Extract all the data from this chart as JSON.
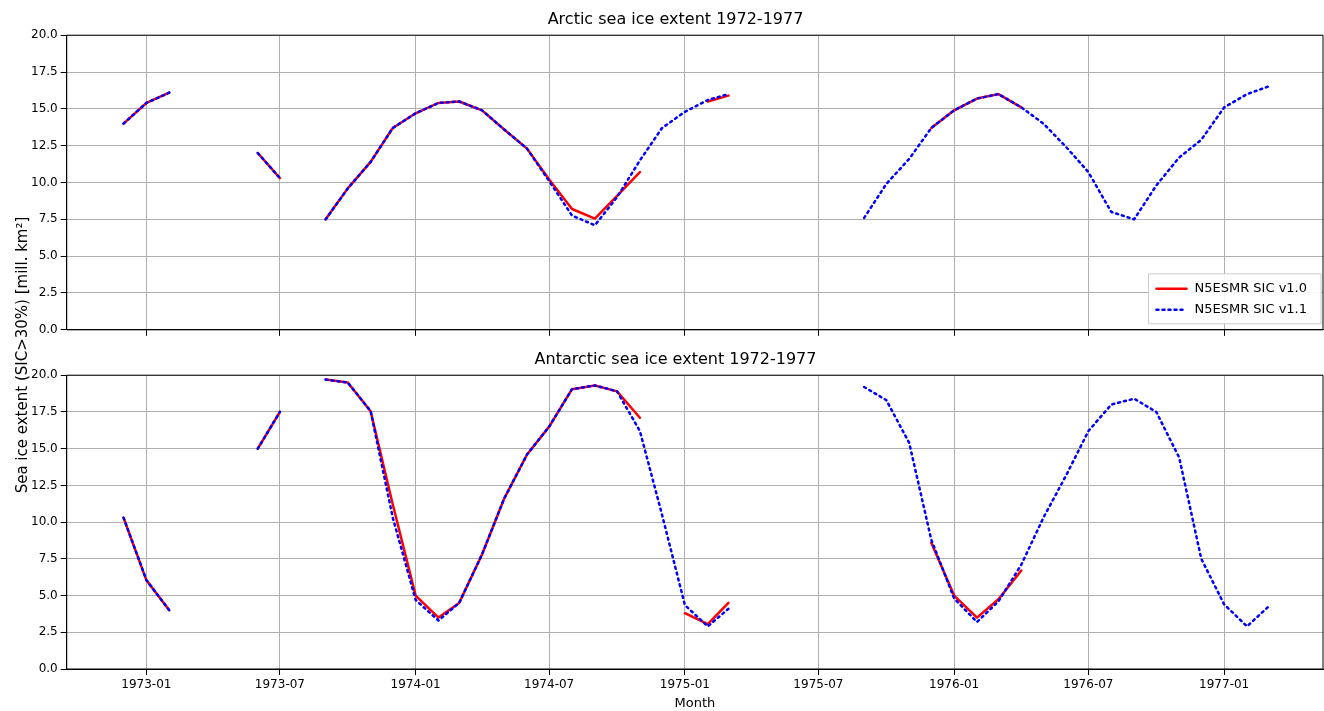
{
  "chart_data": [
    {
      "type": "line",
      "title": "Arctic sea ice extent 1972-1977",
      "x": [
        "1972-12",
        "1973-01",
        "1973-02",
        "1973-03",
        "1973-04",
        "1973-05",
        "1973-06",
        "1973-07",
        "1973-08",
        "1973-09",
        "1973-10",
        "1973-11",
        "1973-12",
        "1974-01",
        "1974-02",
        "1974-03",
        "1974-04",
        "1974-05",
        "1974-06",
        "1974-07",
        "1974-08",
        "1974-09",
        "1974-10",
        "1974-11",
        "1974-12",
        "1975-01",
        "1975-02",
        "1975-03",
        "1975-04",
        "1975-05",
        "1975-06",
        "1975-07",
        "1975-08",
        "1975-09",
        "1975-10",
        "1975-11",
        "1975-12",
        "1976-01",
        "1976-02",
        "1976-03",
        "1976-04",
        "1976-05",
        "1976-06",
        "1976-07",
        "1976-08",
        "1976-09",
        "1976-10",
        "1976-11",
        "1976-12",
        "1977-01",
        "1977-02",
        "1977-03"
      ],
      "series": [
        {
          "name": "N5ESMR SIC v1.0",
          "color": "#ff0000",
          "line_style": "solid",
          "values": [
            14.0,
            15.4,
            16.1,
            null,
            null,
            null,
            12.0,
            10.3,
            null,
            7.5,
            9.6,
            11.4,
            13.7,
            14.7,
            15.4,
            15.5,
            14.9,
            13.6,
            12.3,
            10.2,
            8.2,
            7.55,
            9.1,
            10.7,
            null,
            null,
            15.5,
            15.9,
            null,
            null,
            null,
            null,
            null,
            null,
            null,
            null,
            13.7,
            14.9,
            15.7,
            16.0,
            15.1,
            null,
            null,
            null,
            null,
            null,
            null,
            null,
            null,
            null,
            null,
            null
          ]
        },
        {
          "name": "N5ESMR SIC v1.1",
          "color": "#0000ff",
          "line_style": "dotted",
          "values": [
            14.0,
            15.4,
            16.1,
            null,
            null,
            null,
            12.0,
            10.3,
            null,
            7.5,
            9.6,
            11.4,
            13.7,
            14.7,
            15.4,
            15.5,
            14.9,
            13.6,
            12.3,
            10.1,
            7.75,
            7.1,
            9.0,
            11.5,
            13.7,
            14.8,
            15.6,
            16.0,
            null,
            null,
            null,
            null,
            null,
            7.6,
            9.9,
            11.6,
            13.7,
            14.9,
            15.7,
            16.0,
            15.1,
            14.0,
            12.4,
            10.7,
            8.0,
            7.5,
            9.8,
            11.7,
            12.9,
            15.1,
            16.0,
            16.5
          ]
        }
      ],
      "xlim": [
        "1972-09-15",
        "1977-05-15"
      ],
      "xticks": [
        "1973-01",
        "1973-07",
        "1974-01",
        "1974-07",
        "1975-01",
        "1975-07",
        "1976-01",
        "1976-07",
        "1977-01"
      ],
      "ylim": [
        0,
        20
      ],
      "yticks": [
        {
          "value": 0,
          "label": "0.0"
        },
        {
          "value": 2.5,
          "label": "2.5"
        },
        {
          "value": 5,
          "label": "5.0"
        },
        {
          "value": 7.5,
          "label": "7.5"
        },
        {
          "value": 10,
          "label": "10.0"
        },
        {
          "value": 12.5,
          "label": "12.5"
        },
        {
          "value": 15,
          "label": "15.0"
        },
        {
          "value": 17.5,
          "label": "17.5"
        },
        {
          "value": 20,
          "label": "20.0"
        }
      ],
      "tick_labels": "y",
      "grid": true,
      "legend": "bottom right",
      "marker": "none"
    },
    {
      "type": "line",
      "title": "Antarctic sea ice extent 1972-1977",
      "xlabel": "Month",
      "ylabel": "Sea ice extent (SIC>30%) [mill. km²]",
      "x": [
        "1972-12",
        "1973-01",
        "1973-02",
        "1973-03",
        "1973-04",
        "1973-05",
        "1973-06",
        "1973-07",
        "1973-08",
        "1973-09",
        "1973-10",
        "1973-11",
        "1973-12",
        "1974-01",
        "1974-02",
        "1974-03",
        "1974-04",
        "1974-05",
        "1974-06",
        "1974-07",
        "1974-08",
        "1974-09",
        "1974-10",
        "1974-11",
        "1974-12",
        "1975-01",
        "1975-02",
        "1975-03",
        "1975-04",
        "1975-05",
        "1975-06",
        "1975-07",
        "1975-08",
        "1975-09",
        "1975-10",
        "1975-11",
        "1975-12",
        "1976-01",
        "1976-02",
        "1976-03",
        "1976-04",
        "1976-05",
        "1976-06",
        "1976-07",
        "1976-08",
        "1976-09",
        "1976-10",
        "1976-11",
        "1976-12",
        "1977-01",
        "1977-02",
        "1977-03"
      ],
      "series": [
        {
          "color": "#ff0000",
          "line_style": "solid",
          "values": [
            10.3,
            6.05,
            4.0,
            null,
            null,
            null,
            15.0,
            17.5,
            null,
            19.7,
            19.5,
            17.55,
            11.2,
            5.0,
            3.5,
            4.5,
            7.8,
            11.6,
            14.6,
            16.5,
            19.05,
            19.3,
            18.9,
            17.1,
            null,
            3.8,
            3.05,
            4.5,
            null,
            null,
            null,
            null,
            null,
            null,
            null,
            null,
            8.6,
            5.0,
            3.5,
            4.75,
            6.7,
            null,
            null,
            null,
            null,
            null,
            null,
            null,
            null,
            null,
            null,
            null
          ]
        },
        {
          "color": "#0000ff",
          "line_style": "dotted",
          "values": [
            10.3,
            6.05,
            4.0,
            null,
            null,
            null,
            15.0,
            17.5,
            null,
            19.7,
            19.5,
            17.55,
            10.3,
            4.7,
            3.3,
            4.5,
            7.8,
            11.6,
            14.6,
            16.5,
            19.05,
            19.3,
            18.9,
            16.2,
            10.5,
            4.35,
            2.9,
            4.1,
            null,
            null,
            null,
            null,
            null,
            19.2,
            18.3,
            15.4,
            8.8,
            4.8,
            3.2,
            4.6,
            7.1,
            10.3,
            13.2,
            16.2,
            18.0,
            18.4,
            17.5,
            14.4,
            7.5,
            4.4,
            2.9,
            4.2
          ]
        }
      ],
      "xlim": [
        "1972-09-15",
        "1977-05-15"
      ],
      "xticks": [
        "1973-01",
        "1973-07",
        "1974-01",
        "1974-07",
        "1975-01",
        "1975-07",
        "1976-01",
        "1976-07",
        "1977-01"
      ],
      "ylim": [
        0,
        20
      ],
      "yticks": [
        {
          "value": 0,
          "label": "0.0"
        },
        {
          "value": 2.5,
          "label": "2.5"
        },
        {
          "value": 5,
          "label": "5.0"
        },
        {
          "value": 7.5,
          "label": "7.5"
        },
        {
          "value": 10,
          "label": "10.0"
        },
        {
          "value": 12.5,
          "label": "12.5"
        },
        {
          "value": 15,
          "label": "15.0"
        },
        {
          "value": 17.5,
          "label": "17.5"
        },
        {
          "value": 20,
          "label": "20.0"
        }
      ],
      "grid": true,
      "marker": "none"
    }
  ]
}
